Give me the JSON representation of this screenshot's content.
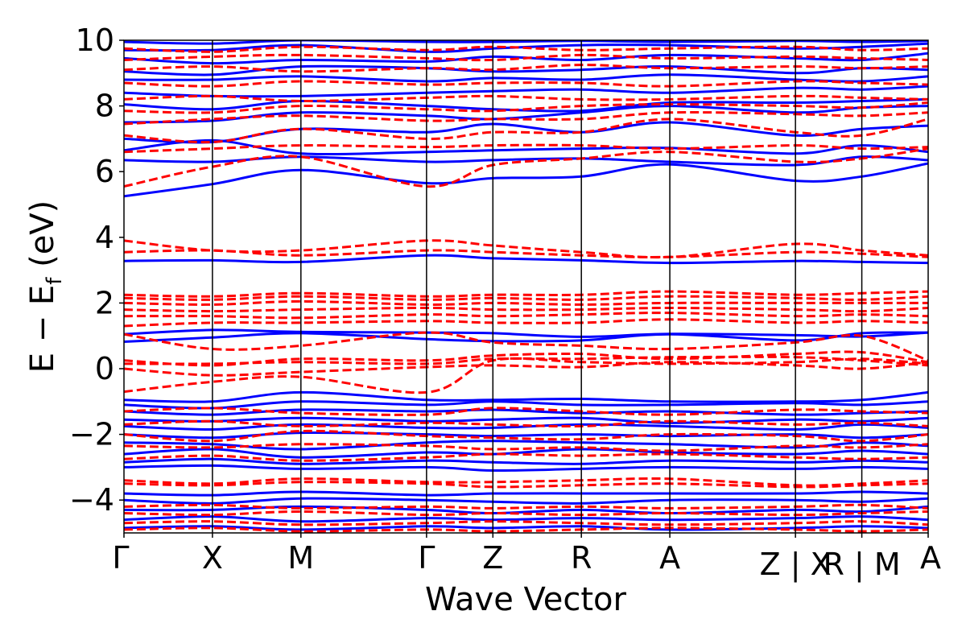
{
  "chart_data": {
    "type": "line",
    "xlabel": "Wave Vector",
    "ylabel_parts": {
      "main": "E − E",
      "sub": "f",
      "tail": " (eV)"
    },
    "ylim": [
      -5,
      10
    ],
    "yticks": [
      {
        "value": -4,
        "label": "−4"
      },
      {
        "value": -2,
        "label": "−2"
      },
      {
        "value": 0,
        "label": "0"
      },
      {
        "value": 2,
        "label": "2"
      },
      {
        "value": 4,
        "label": "4"
      },
      {
        "value": 6,
        "label": "6"
      },
      {
        "value": 8,
        "label": "8"
      },
      {
        "value": 10,
        "label": "10"
      }
    ],
    "kpath": [
      {
        "label": "Γ",
        "x": 0.0
      },
      {
        "label": "X",
        "x": 1.0
      },
      {
        "label": "M",
        "x": 2.0
      },
      {
        "label": "Γ",
        "x": 3.42
      },
      {
        "label": "Z",
        "x": 4.17
      },
      {
        "label": "R",
        "x": 5.17
      },
      {
        "label": "A",
        "x": 6.17
      },
      {
        "label": "Z | X",
        "x": 7.59
      },
      {
        "label": "R | M",
        "x": 8.34
      },
      {
        "label": "A",
        "x": 9.09
      }
    ],
    "grid": false,
    "series": [
      {
        "color": "#0000ff",
        "dash": "solid",
        "bands": [
          [
            1.05,
            1.18,
            1.12,
            1.1,
            1.08,
            0.97,
            1.06,
            1.02,
            0.98,
            1.1
          ],
          [
            0.82,
            0.95,
            1.08,
            0.9,
            0.84,
            0.86,
            1.05,
            0.86,
            1.08,
            1.1
          ],
          [
            3.28,
            3.3,
            3.25,
            3.45,
            3.36,
            3.3,
            3.22,
            3.28,
            3.25,
            3.22
          ],
          [
            5.25,
            5.62,
            6.05,
            5.65,
            5.8,
            5.85,
            6.22,
            5.72,
            5.85,
            6.25
          ],
          [
            6.35,
            6.3,
            6.45,
            6.3,
            6.35,
            6.4,
            6.3,
            6.2,
            6.45,
            6.35
          ],
          [
            6.65,
            6.95,
            6.55,
            6.6,
            6.65,
            6.7,
            6.72,
            6.55,
            6.8,
            6.6
          ],
          [
            7.0,
            6.9,
            7.3,
            7.2,
            7.45,
            7.2,
            7.5,
            7.1,
            7.3,
            7.4
          ],
          [
            7.5,
            7.55,
            7.8,
            7.7,
            7.6,
            7.8,
            8.0,
            7.8,
            7.95,
            8.0
          ],
          [
            8.05,
            7.9,
            8.15,
            8.0,
            7.9,
            7.85,
            8.1,
            8.1,
            8.15,
            8.2
          ],
          [
            8.4,
            8.3,
            8.3,
            8.4,
            8.45,
            8.5,
            8.4,
            8.55,
            8.5,
            8.6
          ],
          [
            8.8,
            8.8,
            8.9,
            8.75,
            8.85,
            8.8,
            8.95,
            8.8,
            8.75,
            8.9
          ],
          [
            9.05,
            8.95,
            9.2,
            9.15,
            9.05,
            9.1,
            9.2,
            9.0,
            9.15,
            9.1
          ],
          [
            9.45,
            9.3,
            9.4,
            9.35,
            9.5,
            9.4,
            9.55,
            9.45,
            9.4,
            9.6
          ],
          [
            9.7,
            9.7,
            9.85,
            9.65,
            9.75,
            9.85,
            9.85,
            9.75,
            9.8,
            9.9
          ],
          [
            9.95,
            9.9,
            10.0,
            9.95,
            9.95,
            9.98,
            9.95,
            9.98,
            9.95,
            9.98
          ],
          [
            -0.95,
            -1.0,
            -0.72,
            -0.95,
            -0.95,
            -0.92,
            -1.0,
            -1.0,
            -0.95,
            -0.72
          ],
          [
            -1.1,
            -1.2,
            -1.0,
            -1.1,
            -1.0,
            -1.1,
            -1.1,
            -1.05,
            -1.1,
            -1.0
          ],
          [
            -1.3,
            -1.4,
            -1.25,
            -1.3,
            -1.25,
            -1.35,
            -1.3,
            -1.4,
            -1.35,
            -1.3
          ],
          [
            -1.55,
            -1.6,
            -1.5,
            -1.6,
            -1.55,
            -1.5,
            -1.65,
            -1.55,
            -1.6,
            -1.5
          ],
          [
            -1.75,
            -1.85,
            -1.7,
            -1.8,
            -1.8,
            -1.7,
            -1.75,
            -1.85,
            -1.7,
            -1.8
          ],
          [
            -2.0,
            -2.1,
            -1.95,
            -2.0,
            -2.05,
            -2.0,
            -2.05,
            -2.0,
            -2.1,
            -2.0
          ],
          [
            -2.25,
            -2.3,
            -2.45,
            -2.25,
            -2.2,
            -2.25,
            -2.3,
            -2.4,
            -2.25,
            -2.35
          ],
          [
            -2.6,
            -2.45,
            -2.7,
            -2.55,
            -2.6,
            -2.45,
            -2.55,
            -2.6,
            -2.5,
            -2.6
          ],
          [
            -2.85,
            -2.75,
            -2.9,
            -2.8,
            -2.85,
            -2.9,
            -2.8,
            -2.85,
            -2.8,
            -2.85
          ],
          [
            -3.0,
            -2.95,
            -3.05,
            -3.0,
            -3.1,
            -3.05,
            -3.0,
            -3.05,
            -3.0,
            -3.05
          ],
          [
            -3.8,
            -3.85,
            -3.75,
            -3.85,
            -3.8,
            -3.8,
            -3.8,
            -3.8,
            -3.75,
            -3.8
          ],
          [
            -4.0,
            -4.1,
            -3.95,
            -4.0,
            -4.05,
            -4.1,
            -4.0,
            -4.0,
            -4.05,
            -3.95
          ],
          [
            -4.3,
            -4.3,
            -4.2,
            -4.3,
            -4.4,
            -4.3,
            -4.4,
            -4.3,
            -4.35,
            -4.2
          ],
          [
            -4.6,
            -4.5,
            -4.65,
            -4.55,
            -4.6,
            -4.55,
            -4.6,
            -4.55,
            -4.5,
            -4.6
          ],
          [
            -4.85,
            -4.8,
            -4.9,
            -4.8,
            -4.85,
            -4.8,
            -4.9,
            -4.85,
            -4.8,
            -4.85
          ]
        ]
      },
      {
        "color": "#ff0000",
        "dash": "dashed",
        "bands": [
          [
            -0.7,
            -0.4,
            -0.25,
            -0.72,
            0.25,
            0.2,
            0.15,
            0.2,
            0.3,
            0.15
          ],
          [
            0.0,
            -0.2,
            -0.1,
            0.05,
            0.1,
            0.05,
            0.2,
            0.1,
            0.0,
            0.2
          ],
          [
            0.15,
            0.15,
            0.2,
            0.15,
            0.3,
            0.3,
            0.35,
            0.35,
            0.25,
            0.1
          ],
          [
            0.25,
            0.1,
            0.3,
            0.25,
            0.4,
            0.45,
            0.3,
            0.45,
            0.5,
            0.2
          ],
          [
            1.05,
            0.6,
            0.7,
            1.1,
            0.8,
            0.7,
            0.6,
            0.8,
            1.0,
            0.25
          ],
          [
            1.3,
            1.4,
            1.4,
            1.45,
            1.4,
            1.4,
            1.5,
            1.4,
            1.45,
            1.4
          ],
          [
            1.6,
            1.6,
            1.55,
            1.65,
            1.6,
            1.65,
            1.7,
            1.6,
            1.65,
            1.6
          ],
          [
            1.8,
            1.75,
            1.8,
            1.85,
            1.8,
            1.8,
            1.85,
            1.8,
            1.75,
            1.85
          ],
          [
            2.0,
            1.95,
            2.05,
            1.95,
            2.0,
            1.95,
            2.0,
            2.0,
            2.0,
            2.0
          ],
          [
            2.15,
            2.1,
            2.2,
            2.1,
            2.15,
            2.1,
            2.2,
            2.15,
            2.1,
            2.2
          ],
          [
            2.25,
            2.2,
            2.3,
            2.2,
            2.25,
            2.25,
            2.35,
            2.25,
            2.3,
            2.35
          ],
          [
            3.55,
            3.6,
            3.45,
            3.6,
            3.55,
            3.45,
            3.4,
            3.55,
            3.5,
            3.4
          ],
          [
            3.9,
            3.6,
            3.6,
            3.9,
            3.75,
            3.55,
            3.4,
            3.8,
            3.6,
            3.45
          ],
          [
            5.55,
            6.15,
            6.45,
            5.55,
            6.2,
            6.4,
            6.6,
            6.3,
            6.4,
            6.7
          ],
          [
            6.6,
            6.7,
            6.8,
            6.75,
            6.8,
            6.8,
            6.7,
            6.8,
            6.7,
            6.75
          ],
          [
            7.1,
            6.9,
            7.3,
            7.0,
            7.2,
            7.2,
            7.6,
            7.2,
            7.1,
            7.6
          ],
          [
            7.45,
            7.6,
            7.7,
            7.55,
            7.6,
            7.6,
            7.8,
            7.75,
            7.7,
            7.8
          ],
          [
            7.85,
            7.8,
            8.0,
            7.9,
            7.85,
            8.0,
            8.05,
            8.0,
            7.95,
            8.1
          ],
          [
            8.2,
            8.3,
            8.15,
            8.25,
            8.3,
            8.2,
            8.2,
            8.3,
            8.25,
            8.2
          ],
          [
            8.7,
            8.6,
            8.75,
            8.65,
            8.7,
            8.7,
            8.6,
            8.75,
            8.7,
            8.65
          ],
          [
            9.1,
            9.2,
            9.05,
            9.15,
            9.1,
            9.25,
            9.15,
            9.2,
            9.15,
            9.2
          ],
          [
            9.4,
            9.5,
            9.55,
            9.45,
            9.4,
            9.55,
            9.45,
            9.5,
            9.45,
            9.4
          ],
          [
            9.75,
            9.65,
            9.8,
            9.7,
            9.8,
            9.7,
            9.75,
            9.8,
            9.7,
            9.75
          ],
          [
            -1.3,
            -1.2,
            -1.35,
            -1.4,
            -1.2,
            -1.3,
            -1.4,
            -1.25,
            -1.3,
            -1.35
          ],
          [
            -1.7,
            -1.6,
            -1.75,
            -1.65,
            -1.7,
            -1.75,
            -1.6,
            -1.7,
            -1.65,
            -1.75
          ],
          [
            -2.0,
            -2.2,
            -1.9,
            -2.05,
            -2.1,
            -2.15,
            -2.0,
            -2.05,
            -2.2,
            -2.0
          ],
          [
            -2.35,
            -2.4,
            -2.3,
            -2.35,
            -2.45,
            -2.4,
            -2.5,
            -2.35,
            -2.4,
            -2.3
          ],
          [
            -2.75,
            -2.65,
            -2.8,
            -2.7,
            -2.6,
            -2.65,
            -2.6,
            -2.7,
            -2.75,
            -2.7
          ],
          [
            -3.4,
            -3.5,
            -3.35,
            -3.45,
            -3.45,
            -3.4,
            -3.35,
            -3.55,
            -3.5,
            -3.4
          ],
          [
            -3.5,
            -3.55,
            -3.45,
            -3.5,
            -3.6,
            -3.55,
            -3.5,
            -3.6,
            -3.55,
            -3.5
          ],
          [
            -4.2,
            -4.15,
            -4.25,
            -4.2,
            -4.25,
            -4.2,
            -4.25,
            -4.2,
            -4.15,
            -4.25
          ],
          [
            -4.4,
            -4.45,
            -4.35,
            -4.45,
            -4.4,
            -4.45,
            -4.4,
            -4.45,
            -4.4,
            -4.35
          ],
          [
            -4.7,
            -4.65,
            -4.75,
            -4.7,
            -4.65,
            -4.7,
            -4.75,
            -4.7,
            -4.65,
            -4.75
          ],
          [
            -4.9,
            -4.85,
            -4.95,
            -4.9,
            -4.95,
            -4.9,
            -4.85,
            -4.9,
            -4.95,
            -4.9
          ]
        ]
      }
    ]
  }
}
